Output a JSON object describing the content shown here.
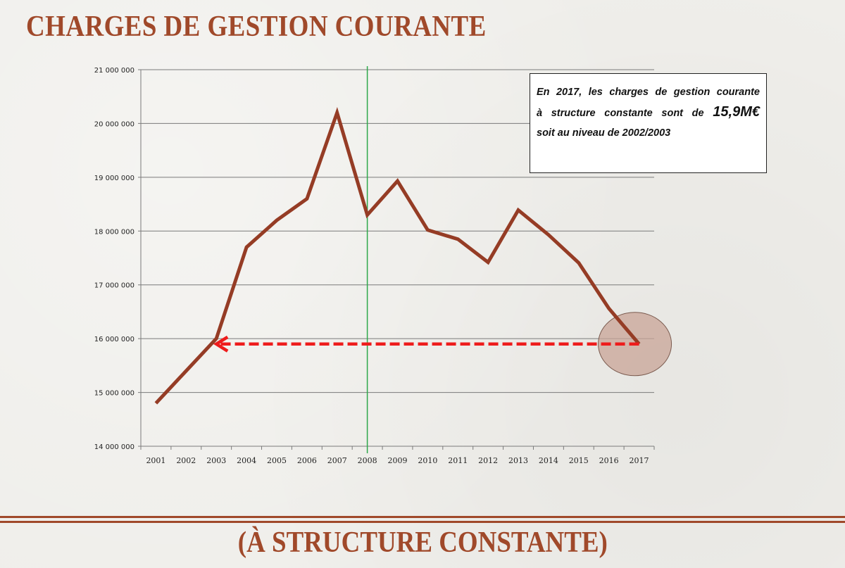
{
  "slide": {
    "title": "CHARGES DE GESTION COURANTE",
    "subtitle": "(À STRUCTURE CONSTANTE)"
  },
  "annotation": {
    "line1": "En 2017, les charges de gestion courante",
    "line2_prefix": "à structure constante sont de",
    "line2_value": "15,9M€",
    "line3": "soit au niveau de 2002/2003"
  },
  "colors": {
    "title": "#a0492a",
    "series_line": "#953c25",
    "arrow": "#ee1c1c",
    "marker_line": "#2ea84a",
    "highlight_circle": "#c8a497"
  },
  "chart_data": {
    "type": "line",
    "categories": [
      "2001",
      "2002",
      "2003",
      "2004",
      "2005",
      "2006",
      "2007",
      "2008",
      "2009",
      "2010",
      "2011",
      "2012",
      "2013",
      "2014",
      "2015",
      "2016",
      "2017"
    ],
    "values": [
      14800000,
      15400000,
      16000000,
      17700000,
      18200000,
      18600000,
      20200000,
      18300000,
      18930000,
      18020000,
      17850000,
      17420000,
      18390000,
      17930000,
      17410000,
      16560000,
      15900000
    ],
    "ylim": [
      14000000,
      21000000
    ],
    "yticks": [
      "14 000 000",
      "15 000 000",
      "16 000 000",
      "17 000 000",
      "18 000 000",
      "19 000 000",
      "20 000 000",
      "21 000 000"
    ],
    "grid": true,
    "vertical_marker": "2008",
    "arrow": {
      "from": "2017",
      "to": "2003",
      "value": 15900000
    },
    "highlight": "2017"
  }
}
